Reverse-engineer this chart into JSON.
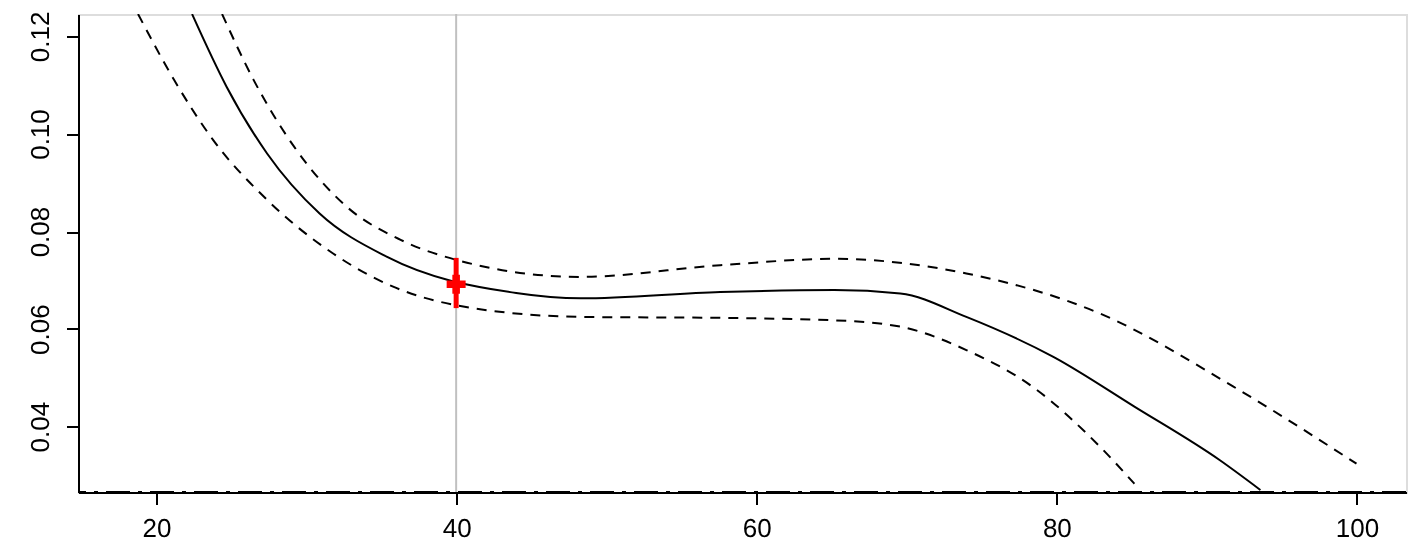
{
  "chart_data": {
    "type": "line",
    "xlim": [
      14.8,
      103.3
    ],
    "ylim": [
      0.0265,
      0.1245
    ],
    "xticks": [
      20,
      40,
      60,
      80,
      100
    ],
    "yticks": [
      0.04,
      0.06,
      0.08,
      {
        "value": 0.1,
        "label": "0.10"
      },
      0.12
    ],
    "grid": false,
    "series": [
      {
        "color": "#000000",
        "line_style": "solid",
        "x": [
          22.4,
          24.7,
          27.4,
          30.9,
          35.4,
          44.0,
          48.3,
          57.6,
          65.2,
          69.6,
          74.0,
          79.8,
          85.2,
          90.9,
          93.6
        ],
        "values": [
          0.1245,
          0.1096,
          0.0959,
          0.0836,
          0.0747,
          0.0673,
          0.0662,
          0.0675,
          0.0679,
          0.0672,
          0.0624,
          0.0542,
          0.044,
          0.033,
          0.0269
        ]
      },
      {
        "type": "line",
        "color": "#000000",
        "line_style": "dashed",
        "x": [
          24.4,
          26.5,
          29.2,
          32.7,
          36.3,
          40.0,
          48.3,
          57.6,
          65.2,
          74.0,
          82.9,
          91.8,
          100.0
        ],
        "values": [
          0.1245,
          0.111,
          0.0973,
          0.085,
          0.0782,
          0.0741,
          0.0706,
          0.073,
          0.0743,
          0.0713,
          0.0631,
          0.0481,
          0.0323
        ]
      },
      {
        "type": "line",
        "color": "#000000",
        "line_style": "dashed",
        "x": [
          18.8,
          21.2,
          23.8,
          27.4,
          31.8,
          35.8,
          40.0,
          48.3,
          57.6,
          65.2,
          69.6,
          74.0,
          78.4,
          82.9,
          85.2
        ],
        "values": [
          0.1245,
          0.111,
          0.0987,
          0.0864,
          0.0754,
          0.0686,
          0.0648,
          0.0624,
          0.0622,
          0.0617,
          0.0604,
          0.0556,
          0.0481,
          0.0358,
          0.0282
        ]
      },
      {
        "type": "scatter",
        "color": "#ff0000",
        "marker": "cross",
        "x": [
          40
        ],
        "values": [
          0.0691
        ],
        "errors": [
          [
            0.0642,
            0.0745
          ]
        ]
      }
    ],
    "ref_lines": [
      {
        "axis": "x",
        "value": 40,
        "color": "#c0c0c0",
        "line_style": "solid"
      },
      {
        "axis": "y",
        "value": 0.0265,
        "color": "#000000",
        "line_style": "dashdot"
      }
    ]
  }
}
